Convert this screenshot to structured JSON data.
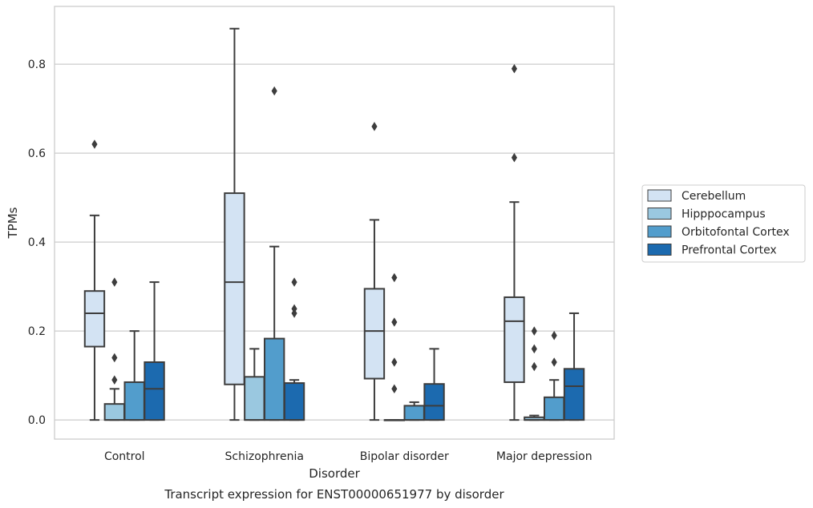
{
  "chart_data": {
    "type": "box",
    "title": "Transcript expression for ENST00000651977 by disorder",
    "xlabel": "Disorder",
    "ylabel": "TPMs",
    "ylim": [
      -0.043,
      0.93
    ],
    "yticks": [
      0.0,
      0.2,
      0.4,
      0.6,
      0.8
    ],
    "ytick_labels": [
      "0.0",
      "0.2",
      "0.4",
      "0.6",
      "0.8"
    ],
    "grid": "horizontal",
    "legend_position": "right",
    "categories": [
      "Control",
      "Schizophrenia",
      "Bipolar disorder",
      "Major depression"
    ],
    "series": [
      {
        "name": "Cerebellum",
        "color": "#d3e3f3",
        "boxes": [
          {
            "min": 0.0,
            "q1": 0.165,
            "median": 0.24,
            "q3": 0.29,
            "max": 0.46,
            "outliers": [
              0.62
            ]
          },
          {
            "min": 0.0,
            "q1": 0.08,
            "median": 0.31,
            "q3": 0.51,
            "max": 0.88,
            "outliers": []
          },
          {
            "min": 0.0,
            "q1": 0.093,
            "median": 0.2,
            "q3": 0.295,
            "max": 0.45,
            "outliers": [
              0.66
            ]
          },
          {
            "min": 0.0,
            "q1": 0.085,
            "median": 0.222,
            "q3": 0.276,
            "max": 0.49,
            "outliers": [
              0.59,
              0.79
            ]
          }
        ]
      },
      {
        "name": "Hipppocampus",
        "color": "#9ac8e0",
        "boxes": [
          {
            "min": 0.0,
            "q1": 0.0,
            "median": 0.0,
            "q3": 0.036,
            "max": 0.07,
            "outliers": [
              0.09,
              0.14,
              0.31
            ]
          },
          {
            "min": 0.0,
            "q1": 0.0,
            "median": 0.0,
            "q3": 0.097,
            "max": 0.16,
            "outliers": []
          },
          {
            "min": 0.0,
            "q1": 0.0,
            "median": 0.0,
            "q3": 0.0,
            "max": 0.0,
            "outliers": [
              0.07,
              0.13,
              0.22,
              0.32
            ]
          },
          {
            "min": 0.0,
            "q1": 0.0,
            "median": 0.0,
            "q3": 0.006,
            "max": 0.01,
            "outliers": [
              0.12,
              0.16,
              0.2
            ]
          }
        ]
      },
      {
        "name": "Orbitofontal Cortex",
        "color": "#529dcc",
        "boxes": [
          {
            "min": 0.0,
            "q1": 0.0,
            "median": 0.0,
            "q3": 0.085,
            "max": 0.2,
            "outliers": []
          },
          {
            "min": 0.0,
            "q1": 0.0,
            "median": 0.0,
            "q3": 0.183,
            "max": 0.39,
            "outliers": [
              0.74
            ]
          },
          {
            "min": 0.0,
            "q1": 0.0,
            "median": 0.0,
            "q3": 0.032,
            "max": 0.04,
            "outliers": []
          },
          {
            "min": 0.0,
            "q1": 0.0,
            "median": 0.0,
            "q3": 0.051,
            "max": 0.09,
            "outliers": [
              0.13,
              0.19
            ]
          }
        ]
      },
      {
        "name": "Prefrontal Cortex",
        "color": "#1c6aaf",
        "boxes": [
          {
            "min": 0.0,
            "q1": 0.0,
            "median": 0.07,
            "q3": 0.13,
            "max": 0.31,
            "outliers": []
          },
          {
            "min": 0.0,
            "q1": 0.0,
            "median": 0.0,
            "q3": 0.083,
            "max": 0.09,
            "outliers": [
              0.24,
              0.25,
              0.31
            ]
          },
          {
            "min": 0.0,
            "q1": 0.0,
            "median": 0.032,
            "q3": 0.081,
            "max": 0.16,
            "outliers": []
          },
          {
            "min": 0.0,
            "q1": 0.0,
            "median": 0.076,
            "q3": 0.115,
            "max": 0.24,
            "outliers": []
          }
        ]
      }
    ]
  },
  "colors": {
    "edge": "#3d3d3d",
    "grid": "#cccccc",
    "frame": "#cccccc",
    "background": "#ffffff"
  }
}
